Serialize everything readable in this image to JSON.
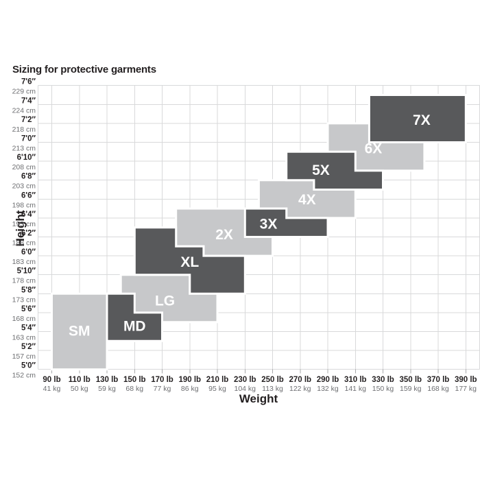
{
  "page": {
    "background": "#ffffff"
  },
  "chart_data": {
    "type": "stepped-region-chart",
    "title": "Sizing for protective garments",
    "xlabel": "Weight",
    "ylabel": "Height",
    "grid": true,
    "colors": {
      "light_block": "#c7c8ca",
      "dark_block": "#58595b",
      "grid_line": "#d8d9da",
      "tick_mark": "#a7a8aa",
      "label_primary": "#231f20",
      "label_secondary": "#6d6e71",
      "block_label": "#ffffff",
      "block_outline": "#ffffff"
    },
    "x_axis": {
      "units": [
        "lb",
        "kg"
      ],
      "plot_min_lb": 80,
      "plot_max_lb": 400,
      "ticks": [
        {
          "value": 90,
          "lb": "90 lb",
          "kg": "41 kg"
        },
        {
          "value": 110,
          "lb": "110 lb",
          "kg": "50 kg"
        },
        {
          "value": 130,
          "lb": "130 lb",
          "kg": "59 kg"
        },
        {
          "value": 150,
          "lb": "150 lb",
          "kg": "68 kg"
        },
        {
          "value": 170,
          "lb": "170 lb",
          "kg": "77 kg"
        },
        {
          "value": 190,
          "lb": "190 lb",
          "kg": "86 kg"
        },
        {
          "value": 210,
          "lb": "210 lb",
          "kg": "95 kg"
        },
        {
          "value": 230,
          "lb": "230 lb",
          "kg": "104 kg"
        },
        {
          "value": 250,
          "lb": "250 lb",
          "kg": "113 kg"
        },
        {
          "value": 270,
          "lb": "270 lb",
          "kg": "122 kg"
        },
        {
          "value": 290,
          "lb": "290 lb",
          "kg": "132 kg"
        },
        {
          "value": 310,
          "lb": "310 lb",
          "kg": "141 kg"
        },
        {
          "value": 330,
          "lb": "330 lb",
          "kg": "150 kg"
        },
        {
          "value": 350,
          "lb": "350 lb",
          "kg": "159 kg"
        },
        {
          "value": 370,
          "lb": "370 lb",
          "kg": "168 kg"
        },
        {
          "value": 390,
          "lb": "390 lb",
          "kg": "177 kg"
        }
      ]
    },
    "y_axis": {
      "units": [
        "ft-in",
        "cm"
      ],
      "min_in_above_5ft": 0,
      "max_in_above_5ft": 30,
      "ticks": [
        {
          "h": 30,
          "ft": "7'6″",
          "cm": "229 cm"
        },
        {
          "h": 28,
          "ft": "7'4″",
          "cm": "224 cm"
        },
        {
          "h": 26,
          "ft": "7'2″",
          "cm": "218 cm"
        },
        {
          "h": 24,
          "ft": "7'0″",
          "cm": "213 cm"
        },
        {
          "h": 22,
          "ft": "6'10″",
          "cm": "208 cm"
        },
        {
          "h": 20,
          "ft": "6'8″",
          "cm": "203 cm"
        },
        {
          "h": 18,
          "ft": "6'6″",
          "cm": "198 cm"
        },
        {
          "h": 16,
          "ft": "6'4″",
          "cm": "193 cm"
        },
        {
          "h": 14,
          "ft": "6'2″",
          "cm": "188 cm"
        },
        {
          "h": 12,
          "ft": "6'0″",
          "cm": "183 cm"
        },
        {
          "h": 10,
          "ft": "5'10″",
          "cm": "178 cm"
        },
        {
          "h": 8,
          "ft": "5'8″",
          "cm": "173 cm"
        },
        {
          "h": 6,
          "ft": "5'6″",
          "cm": "168 cm"
        },
        {
          "h": 4,
          "ft": "5'4″",
          "cm": "163 cm"
        },
        {
          "h": 2,
          "ft": "5'2″",
          "cm": "157 cm"
        },
        {
          "h": 0,
          "ft": "5'0″",
          "cm": "152 cm"
        }
      ]
    },
    "sizes": [
      {
        "label": "SM",
        "shade": "light",
        "points": [
          [
            90,
            8
          ],
          [
            130,
            8
          ],
          [
            130,
            0
          ],
          [
            90,
            0
          ]
        ],
        "label_at": [
          110,
          4.1
        ]
      },
      {
        "label": "MD",
        "shade": "dark",
        "points": [
          [
            130,
            8
          ],
          [
            150,
            8
          ],
          [
            150,
            6
          ],
          [
            170,
            6
          ],
          [
            170,
            3
          ],
          [
            130,
            3
          ]
        ],
        "label_at": [
          150,
          4.6
        ]
      },
      {
        "label": "LG",
        "shade": "light",
        "points": [
          [
            140,
            10
          ],
          [
            190,
            10
          ],
          [
            190,
            8
          ],
          [
            210,
            8
          ],
          [
            210,
            5
          ],
          [
            140,
            5
          ]
        ],
        "label_at": [
          172,
          7.3
        ]
      },
      {
        "label": "XL",
        "shade": "dark",
        "points": [
          [
            150,
            15
          ],
          [
            180,
            15
          ],
          [
            180,
            13
          ],
          [
            200,
            13
          ],
          [
            200,
            12
          ],
          [
            230,
            12
          ],
          [
            230,
            8
          ],
          [
            190,
            8
          ],
          [
            190,
            10
          ],
          [
            150,
            10
          ]
        ],
        "label_at": [
          190,
          11.4
        ]
      },
      {
        "label": "2X",
        "shade": "light",
        "points": [
          [
            180,
            17
          ],
          [
            250,
            17
          ],
          [
            250,
            12
          ],
          [
            200,
            12
          ],
          [
            200,
            13
          ],
          [
            180,
            13
          ]
        ],
        "label_at": [
          215,
          14.3
        ]
      },
      {
        "label": "3X",
        "shade": "dark",
        "points": [
          [
            230,
            17
          ],
          [
            260,
            17
          ],
          [
            260,
            16
          ],
          [
            290,
            16
          ],
          [
            290,
            14
          ],
          [
            230,
            14
          ]
        ],
        "label_at": [
          247,
          15.4
        ]
      },
      {
        "label": "4X",
        "shade": "light",
        "points": [
          [
            240,
            20
          ],
          [
            280,
            20
          ],
          [
            280,
            19
          ],
          [
            310,
            19
          ],
          [
            310,
            16
          ],
          [
            260,
            16
          ],
          [
            260,
            17
          ],
          [
            240,
            17
          ]
        ],
        "label_at": [
          275,
          18
        ]
      },
      {
        "label": "5X",
        "shade": "dark",
        "points": [
          [
            260,
            23
          ],
          [
            310,
            23
          ],
          [
            310,
            21
          ],
          [
            330,
            21
          ],
          [
            330,
            19
          ],
          [
            280,
            19
          ],
          [
            280,
            20
          ],
          [
            260,
            20
          ]
        ],
        "label_at": [
          285,
          21.1
        ]
      },
      {
        "label": "6X",
        "shade": "light",
        "points": [
          [
            290,
            26
          ],
          [
            340,
            26
          ],
          [
            340,
            24
          ],
          [
            360,
            24
          ],
          [
            360,
            21
          ],
          [
            290,
            21
          ]
        ],
        "label_at": [
          323,
          23.4
        ]
      },
      {
        "label": "7X",
        "shade": "dark",
        "points": [
          [
            320,
            29
          ],
          [
            390,
            29
          ],
          [
            390,
            24
          ],
          [
            320,
            24
          ]
        ],
        "label_at": [
          358,
          26.4
        ]
      }
    ]
  }
}
